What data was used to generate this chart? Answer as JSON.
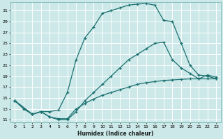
{
  "xlabel": "Humidex (Indice chaleur)",
  "bg_color": "#cce8e8",
  "line_color": "#1a7070",
  "grid_color": "#ffffff",
  "grid_minor_color": "#ddeaea",
  "xlim": [
    -0.5,
    23.5
  ],
  "ylim": [
    10.5,
    32.5
  ],
  "yticks": [
    11,
    13,
    15,
    17,
    19,
    21,
    23,
    25,
    27,
    29,
    31
  ],
  "xticks": [
    0,
    1,
    2,
    3,
    4,
    5,
    6,
    7,
    8,
    9,
    10,
    11,
    12,
    13,
    14,
    15,
    16,
    17,
    18,
    19,
    20,
    21,
    22,
    23
  ],
  "curve_top_x": [
    0,
    1,
    2,
    3,
    4,
    5,
    6,
    7,
    8,
    9,
    10,
    11,
    12,
    13,
    14,
    15,
    16,
    17,
    18,
    19,
    20,
    21,
    22,
    23
  ],
  "curve_top_y": [
    14.5,
    13.0,
    12.0,
    12.5,
    12.5,
    12.8,
    16.0,
    22.0,
    26.0,
    28.0,
    30.5,
    31.0,
    31.5,
    32.0,
    32.2,
    32.3,
    32.0,
    29.2,
    29.0,
    25.0,
    21.0,
    19.2,
    19.0,
    18.5
  ],
  "curve_mid_x": [
    0,
    2,
    3,
    4,
    5,
    6,
    7,
    8,
    9,
    10,
    11,
    12,
    13,
    14,
    15,
    16,
    17,
    18,
    19,
    20,
    21,
    22,
    23
  ],
  "curve_mid_y": [
    14.5,
    12.0,
    12.5,
    11.5,
    11.0,
    11.0,
    12.5,
    14.5,
    16.0,
    17.5,
    19.0,
    20.5,
    22.0,
    23.0,
    24.0,
    25.0,
    25.2,
    22.0,
    20.5,
    19.5,
    18.5,
    19.2,
    18.8
  ],
  "curve_bot_x": [
    0,
    2,
    3,
    4,
    5,
    6,
    7,
    8,
    9,
    10,
    11,
    12,
    13,
    14,
    15,
    16,
    17,
    18,
    19,
    20,
    21,
    22,
    23
  ],
  "curve_bot_y": [
    14.5,
    12.0,
    12.5,
    11.5,
    11.2,
    11.2,
    13.0,
    14.0,
    14.8,
    15.5,
    16.0,
    16.5,
    17.0,
    17.5,
    17.8,
    18.0,
    18.2,
    18.3,
    18.4,
    18.5,
    18.5,
    18.5,
    18.5
  ]
}
